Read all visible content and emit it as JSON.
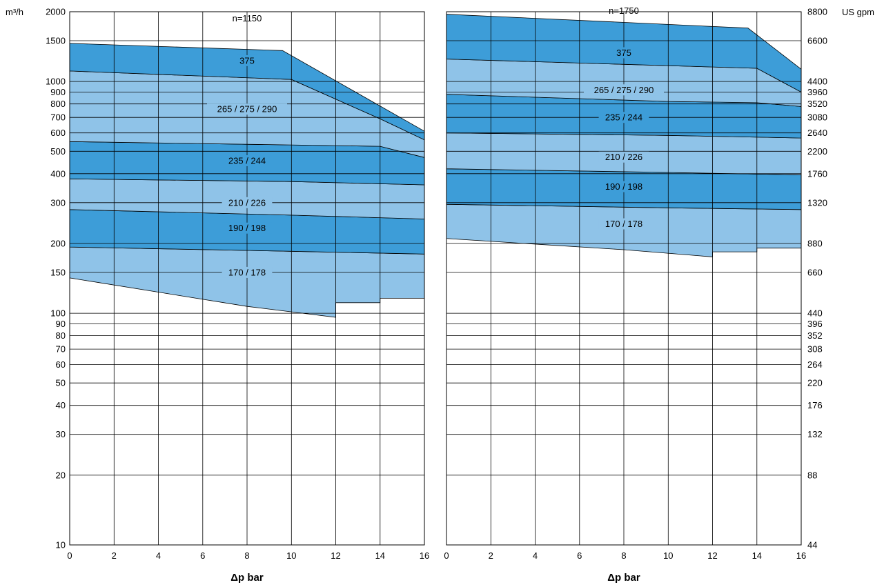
{
  "chart_data": [
    {
      "type": "area",
      "speed_label": "n=1150",
      "xlabel": "Δp bar",
      "ylabel": "m³/h",
      "xlim": [
        0,
        16
      ],
      "ylim": [
        10,
        2000
      ],
      "y_scale": "log",
      "x_ticks": [
        "0",
        "2",
        "4",
        "6",
        "8",
        "10",
        "12",
        "14",
        "16"
      ],
      "y_ticks": [
        "10",
        "20",
        "30",
        "40",
        "50",
        "60",
        "70",
        "80",
        "90",
        "100",
        "150",
        "200",
        "300",
        "400",
        "500",
        "600",
        "700",
        "800",
        "900",
        "1000",
        "1500",
        "2000"
      ],
      "grid": true,
      "series": [
        {
          "name": "170 / 178",
          "color": "#8fc3e8",
          "label_pos": [
            8,
            150
          ],
          "upper": [
            [
              0,
              193
            ],
            [
              10,
              185
            ],
            [
              16,
              180
            ]
          ],
          "lower": [
            [
              0,
              142
            ],
            [
              8,
              107
            ],
            [
              12,
              96
            ],
            [
              12,
              111
            ],
            [
              14,
              111
            ],
            [
              14,
              116
            ],
            [
              16,
              116
            ]
          ]
        },
        {
          "name": "190 / 198",
          "color": "#3d9dd8",
          "label_pos": [
            8,
            233
          ],
          "upper": [
            [
              0,
              280
            ],
            [
              10,
              265
            ],
            [
              16,
              255
            ]
          ],
          "lower": [
            [
              0,
              193
            ],
            [
              10,
              185
            ],
            [
              16,
              180
            ]
          ]
        },
        {
          "name": "210 / 226",
          "color": "#8fc3e8",
          "label_pos": [
            8,
            300
          ],
          "upper": [
            [
              0,
              380
            ],
            [
              10,
              370
            ],
            [
              16,
              358
            ]
          ],
          "lower": [
            [
              0,
              280
            ],
            [
              10,
              265
            ],
            [
              16,
              255
            ]
          ]
        },
        {
          "name": "235 / 244",
          "color": "#3d9dd8",
          "label_pos": [
            8,
            455
          ],
          "upper": [
            [
              0,
              550
            ],
            [
              14,
              525
            ],
            [
              16,
              470
            ]
          ],
          "lower": [
            [
              0,
              380
            ],
            [
              10,
              370
            ],
            [
              16,
              358
            ]
          ]
        },
        {
          "name": "265 / 275 / 290",
          "color": "#8fc3e8",
          "label_pos": [
            8,
            760
          ],
          "upper": [
            [
              0,
              1110
            ],
            [
              10,
              1020
            ],
            [
              14,
              690
            ],
            [
              16,
              560
            ]
          ],
          "lower": [
            [
              0,
              550
            ],
            [
              14,
              525
            ],
            [
              16,
              470
            ]
          ]
        },
        {
          "name": "375",
          "color": "#3d9dd8",
          "label_pos": [
            8,
            1230
          ],
          "upper": [
            [
              0,
              1460
            ],
            [
              9.6,
              1360
            ],
            [
              16,
              610
            ]
          ],
          "lower": [
            [
              0,
              1110
            ],
            [
              10,
              1020
            ],
            [
              14,
              690
            ],
            [
              16,
              560
            ]
          ]
        }
      ]
    },
    {
      "type": "area",
      "speed_label": "n=1750",
      "xlabel": "Δp bar",
      "ylabel": "US gpm",
      "xlim": [
        0,
        16
      ],
      "ylim": [
        10,
        2000
      ],
      "y_scale": "log",
      "x_ticks": [
        "0",
        "2",
        "4",
        "6",
        "8",
        "10",
        "12",
        "14",
        "16"
      ],
      "y_ticks": [
        "44",
        "88",
        "132",
        "176",
        "220",
        "264",
        "308",
        "352",
        "396",
        "440",
        "660",
        "880",
        "1320",
        "1760",
        "2200",
        "2640",
        "3080",
        "3520",
        "3960",
        "4400",
        "6600",
        "8800"
      ],
      "grid": true,
      "series": [
        {
          "name": "170 / 178",
          "color": "#8fc3e8",
          "label_pos": [
            8,
            243
          ],
          "upper": [
            [
              0,
              295
            ],
            [
              10,
              285
            ],
            [
              16,
              280
            ]
          ],
          "lower": [
            [
              0,
              210
            ],
            [
              8,
              188
            ],
            [
              12,
              175
            ],
            [
              12,
              184
            ],
            [
              14,
              184
            ],
            [
              14,
              191
            ],
            [
              16,
              191
            ]
          ]
        },
        {
          "name": "190 / 198",
          "color": "#3d9dd8",
          "label_pos": [
            8,
            352
          ],
          "upper": [
            [
              0,
              420
            ],
            [
              10,
              405
            ],
            [
              16,
              395
            ]
          ],
          "lower": [
            [
              0,
              295
            ],
            [
              10,
              285
            ],
            [
              16,
              280
            ]
          ]
        },
        {
          "name": "210 / 226",
          "color": "#8fc3e8",
          "label_pos": [
            8,
            472
          ],
          "upper": [
            [
              0,
              600
            ],
            [
              10,
              585
            ],
            [
              16,
              570
            ]
          ],
          "lower": [
            [
              0,
              420
            ],
            [
              10,
              405
            ],
            [
              16,
              395
            ]
          ]
        },
        {
          "name": "235 / 244",
          "color": "#3d9dd8",
          "label_pos": [
            8,
            700
          ],
          "upper": [
            [
              0,
              880
            ],
            [
              10,
              820
            ],
            [
              14,
              810
            ],
            [
              16,
              780
            ]
          ],
          "lower": [
            [
              0,
              600
            ],
            [
              10,
              585
            ],
            [
              16,
              570
            ]
          ]
        },
        {
          "name": "265 / 275 / 290",
          "color": "#8fc3e8",
          "label_pos": [
            8,
            920
          ],
          "upper": [
            [
              0,
              1250
            ],
            [
              14,
              1140
            ],
            [
              16,
              900
            ]
          ],
          "lower": [
            [
              0,
              880
            ],
            [
              10,
              820
            ],
            [
              14,
              810
            ],
            [
              16,
              780
            ]
          ]
        },
        {
          "name": "375",
          "color": "#3d9dd8",
          "label_pos": [
            8,
            1330
          ],
          "upper": [
            [
              0,
              1950
            ],
            [
              13.6,
              1700
            ],
            [
              16,
              1130
            ]
          ],
          "lower": [
            [
              0,
              1250
            ],
            [
              14,
              1140
            ],
            [
              16,
              900
            ]
          ]
        }
      ]
    }
  ]
}
